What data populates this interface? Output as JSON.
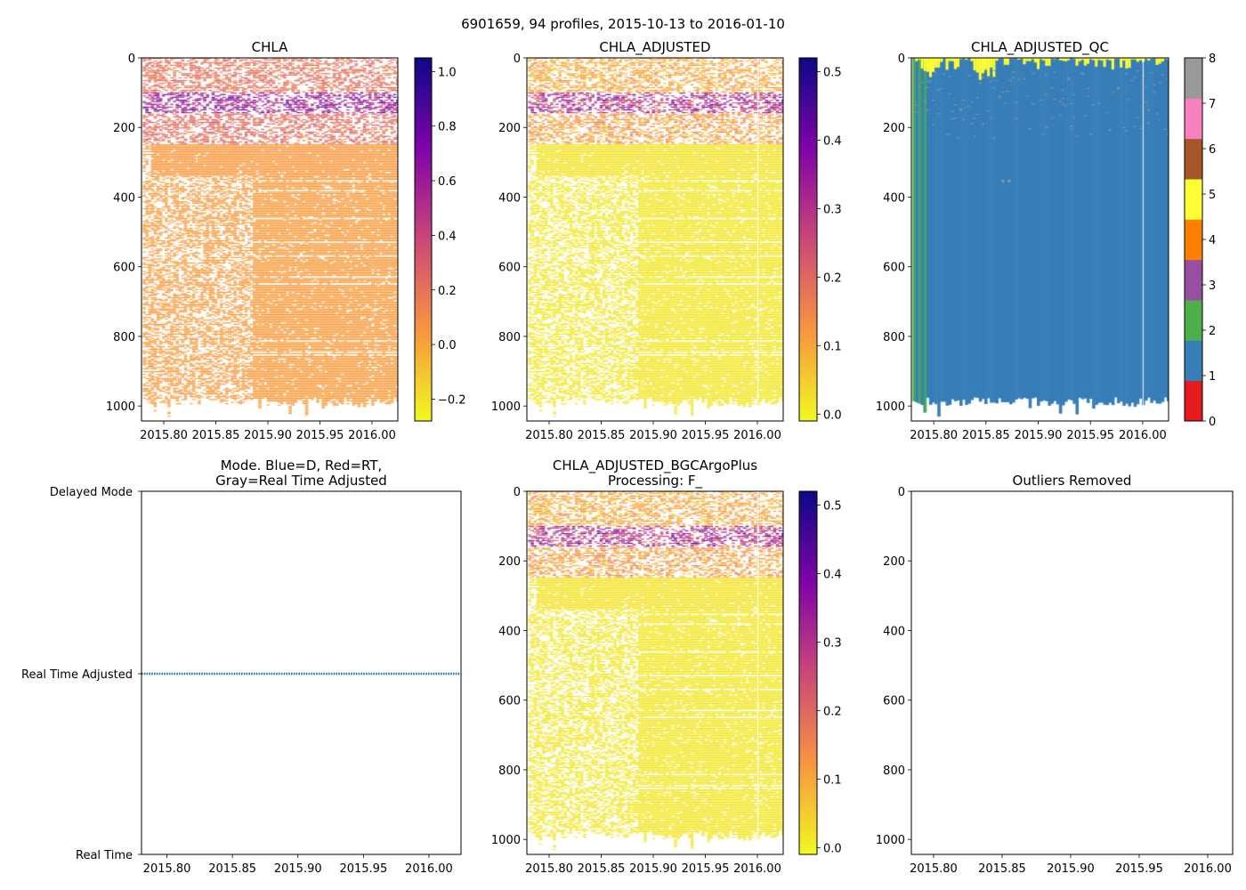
{
  "chart_data": {
    "type": "heatmap",
    "suptitle": "6901659, 94 profiles, 2015-10-13 to 2016-01-10",
    "n_profiles": 94,
    "xlim": [
      2015.7786,
      2016.0248
    ],
    "ylim": [
      1043,
      0
    ],
    "x_ticks": [
      2015.8,
      2015.85,
      2015.9,
      2015.95,
      2016.0
    ],
    "x_tick_labels": [
      "2015.80",
      "2015.85",
      "2015.90",
      "2015.95",
      "2016.00"
    ],
    "y_ticks": [
      0,
      200,
      400,
      600,
      800,
      1000
    ],
    "y_tick_labels": [
      "0",
      "200",
      "400",
      "600",
      "800",
      "1000"
    ],
    "panels": [
      {
        "id": "chla",
        "title": [
          "CHLA"
        ],
        "kind": "heatmap",
        "scale": 1.0,
        "colorbar": {
          "cmap": "plasma_r",
          "range": [
            -0.28,
            1.05
          ],
          "ticks": [
            -0.2,
            0.0,
            0.2,
            0.4,
            0.6,
            0.8,
            1.0
          ],
          "tick_labels": [
            "−0.2",
            "0.0",
            "0.2",
            "0.4",
            "0.6",
            "0.8",
            "1.0"
          ]
        }
      },
      {
        "id": "adj",
        "title": [
          "CHLA_ADJUSTED"
        ],
        "kind": "heatmap",
        "scale": 0.5,
        "colorbar": {
          "cmap": "plasma_r",
          "range": [
            -0.01,
            0.52
          ],
          "ticks": [
            0.0,
            0.1,
            0.2,
            0.3,
            0.4,
            0.5
          ],
          "tick_labels": [
            "0.0",
            "0.1",
            "0.2",
            "0.3",
            "0.4",
            "0.5"
          ]
        }
      },
      {
        "id": "qc",
        "title": [
          "CHLA_ADJUSTED_QC"
        ],
        "kind": "qc",
        "colorbar": {
          "cmap": "Set1",
          "range": [
            0,
            8
          ],
          "ticks": [
            0,
            1,
            2,
            3,
            4,
            5,
            6,
            7,
            8
          ],
          "tick_labels": [
            "0",
            "1",
            "2",
            "3",
            "4",
            "5",
            "6",
            "7",
            "8"
          ],
          "colors": [
            "#e41a1c",
            "#377eb8",
            "#4daf4a",
            "#984ea3",
            "#ff7f00",
            "#ffff33",
            "#a65628",
            "#f781bf",
            "#999999"
          ]
        }
      },
      {
        "id": "mode",
        "title": [
          "Mode. Blue=D, Red=RT,",
          "Gray=Real Time Adjusted"
        ],
        "kind": "mode",
        "xlim": [
          2015.7806,
          2016.0245
        ],
        "y_tick_labels": [
          "Delayed Mode",
          "Real Time Adjusted",
          "Real Time"
        ],
        "mode_value": "Real Time Adjusted",
        "line_color": "#1f77b4"
      },
      {
        "id": "bgc",
        "title": [
          "CHLA_ADJUSTED_BGCArgoPlus",
          "Processing: F_"
        ],
        "kind": "heatmap",
        "scale": 0.5,
        "colorbar": {
          "cmap": "plasma_r",
          "range": [
            -0.01,
            0.52
          ],
          "ticks": [
            0.0,
            0.1,
            0.2,
            0.3,
            0.4,
            0.5
          ],
          "tick_labels": [
            "0.0",
            "0.1",
            "0.2",
            "0.3",
            "0.4",
            "0.5"
          ]
        }
      },
      {
        "id": "out",
        "title": [
          "Outliers Removed"
        ],
        "kind": "empty",
        "xlim": [
          2015.7838,
          2016.0182
        ]
      }
    ]
  }
}
